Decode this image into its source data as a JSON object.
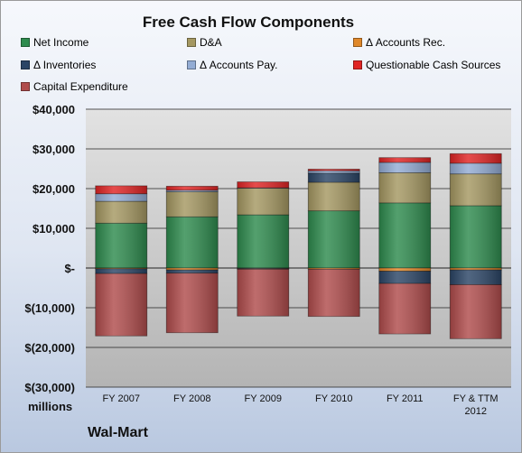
{
  "chart_data": {
    "type": "bar",
    "stacked": true,
    "title": "Free Cash Flow Components",
    "units_label": "millions",
    "company": "Wal-Mart",
    "categories": [
      "FY 2007",
      "FY 2008",
      "FY 2009",
      "FY 2010",
      "FY 2011",
      "FY & TTM 2012"
    ],
    "ylim": [
      -30000,
      40000
    ],
    "yticks": [
      {
        "value": 40000,
        "label": "$40,000"
      },
      {
        "value": 30000,
        "label": "$30,000"
      },
      {
        "value": 20000,
        "label": "$20,000"
      },
      {
        "value": 10000,
        "label": "$10,000"
      },
      {
        "value": 0,
        "label": "$-"
      },
      {
        "value": -10000,
        "label": "$(10,000)"
      },
      {
        "value": -20000,
        "label": "$(20,000)"
      },
      {
        "value": -30000,
        "label": "$(30,000)"
      }
    ],
    "grid": true,
    "legend": "top",
    "series": [
      {
        "name": "Net Income",
        "color": "#2e8b4e",
        "values": [
          11300,
          12900,
          13400,
          14400,
          16400,
          15700
        ]
      },
      {
        "name": "D&A",
        "color": "#a59862",
        "values": [
          5500,
          6300,
          6700,
          7200,
          7600,
          8000
        ]
      },
      {
        "name": "Δ Accounts Rec.",
        "color": "#e0882a",
        "values": [
          -200,
          -500,
          -100,
          -300,
          -800,
          -500
        ]
      },
      {
        "name": "Δ Inventories",
        "color": "#2b4566",
        "values": [
          -1200,
          -800,
          -200,
          2300,
          -3100,
          -3700
        ]
      },
      {
        "name": "Δ Accounts Pay.",
        "color": "#93acd4",
        "values": [
          1900,
          400,
          100,
          600,
          2600,
          2700
        ]
      },
      {
        "name": "Questionable Cash Sources",
        "color": "#e02424",
        "values": [
          2000,
          1000,
          1500,
          400,
          1200,
          2400
        ]
      },
      {
        "name": "Capital Expenditure",
        "color": "#b04c4c",
        "values": [
          -15700,
          -15000,
          -11800,
          -11900,
          -12700,
          -13600
        ]
      }
    ]
  }
}
